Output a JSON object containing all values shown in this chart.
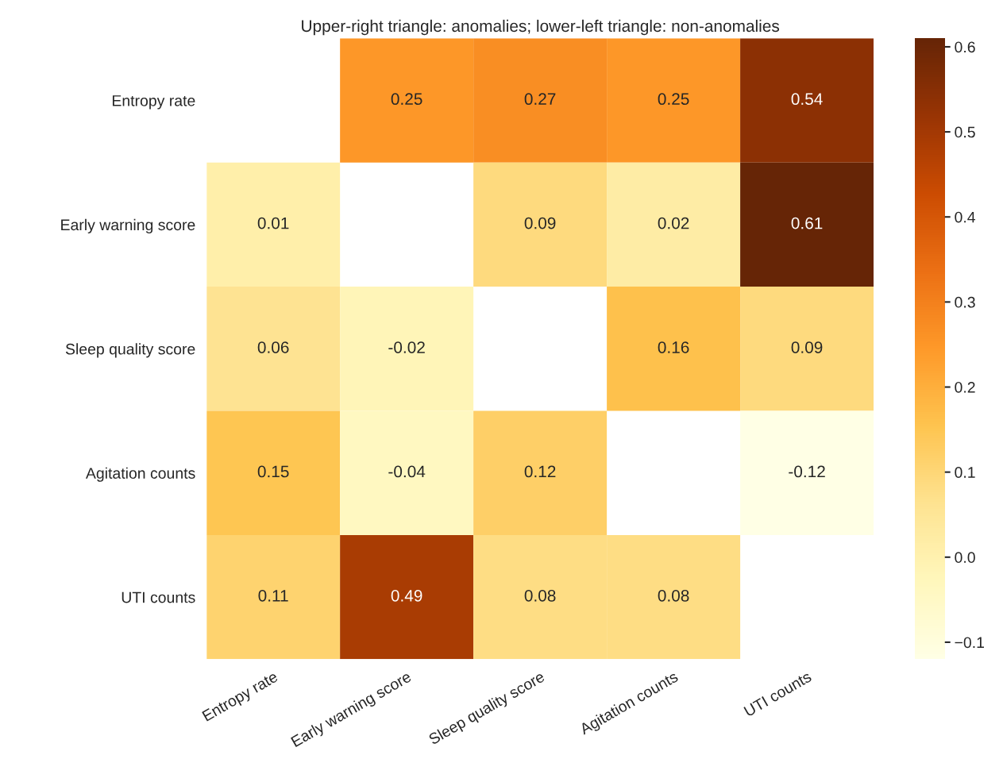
{
  "chart_data": {
    "type": "heatmap",
    "title": "Upper-right triangle: anomalies; lower-left triangle: non-anomalies",
    "categories": [
      "Entropy rate",
      "Early warning score",
      "Sleep quality score",
      "Agitation counts",
      "UTI counts"
    ],
    "y_categories": [
      "Entropy rate",
      "Early warning score",
      "Sleep quality score",
      "Agitation counts",
      "UTI counts"
    ],
    "cells": [
      [
        null,
        0.25,
        0.27,
        0.25,
        0.54
      ],
      [
        0.01,
        null,
        0.09,
        0.02,
        0.61
      ],
      [
        0.06,
        -0.02,
        null,
        0.16,
        0.09
      ],
      [
        0.15,
        -0.04,
        0.12,
        null,
        -0.12
      ],
      [
        0.11,
        0.49,
        0.08,
        0.08,
        null
      ]
    ],
    "clim": [
      -0.12,
      0.61
    ],
    "cticks": [
      -0.1,
      {
        "value": 0,
        "label": "0.0"
      },
      0.1,
      0.2,
      0.3,
      0.4,
      0.5,
      0.6
    ],
    "data_labels": true
  }
}
